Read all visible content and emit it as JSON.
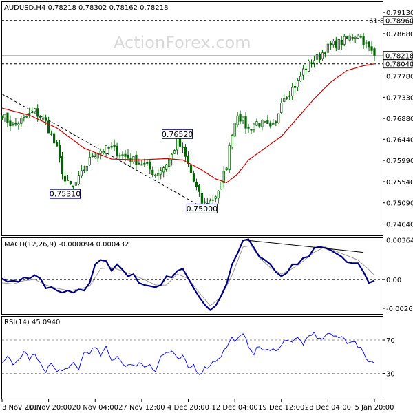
{
  "chart_data": [
    {
      "type": "candlestick",
      "symbol": "AUDUSD",
      "timeframe": "H4",
      "ohlc": [
        "0.78218",
        "0.78302",
        "0.78162",
        "0.78218"
      ],
      "watermark": "ActionForex.com",
      "ylim": [
        0.744,
        0.7935
      ],
      "yticks": [
        "0.79130",
        "0.78680",
        "0.77780",
        "0.77330",
        "0.76880",
        "0.76440",
        "0.75990",
        "0.75540",
        "0.75090",
        "0.74640"
      ],
      "ytick_values": [
        0.7913,
        0.7868,
        0.7778,
        0.7733,
        0.7688,
        0.7644,
        0.7599,
        0.7554,
        0.7509,
        0.7464
      ],
      "price_tags": [
        {
          "label": "0.78960",
          "value": 0.7896,
          "style": "white"
        },
        {
          "label": "0.78218",
          "value": 0.78218,
          "style": "white"
        },
        {
          "label": "0.78040",
          "value": 0.7804,
          "style": "white"
        }
      ],
      "horizontal_levels": [
        {
          "value": 0.7896,
          "label": "61.8"
        },
        {
          "value": 0.7804,
          "label": ""
        }
      ],
      "swing_labels": [
        {
          "label": "0.75310",
          "x": 23,
          "value": 0.7531
        },
        {
          "label": "0.76520",
          "x": 64,
          "value": 0.7652
        },
        {
          "label": "0.75000",
          "x": 73,
          "value": 0.75
        }
      ],
      "trendline": [
        {
          "x": 0,
          "value": 0.774
        },
        {
          "x": 73,
          "value": 0.75
        }
      ],
      "close_anchors": [
        [
          0,
          0.7695
        ],
        [
          4,
          0.7672
        ],
        [
          8,
          0.7688
        ],
        [
          12,
          0.7703
        ],
        [
          16,
          0.768
        ],
        [
          20,
          0.7622
        ],
        [
          23,
          0.7555
        ],
        [
          26,
          0.754
        ],
        [
          30,
          0.758
        ],
        [
          33,
          0.761
        ],
        [
          36,
          0.762
        ],
        [
          40,
          0.7625
        ],
        [
          44,
          0.761
        ],
        [
          48,
          0.76
        ],
        [
          52,
          0.759
        ],
        [
          56,
          0.757
        ],
        [
          59,
          0.7585
        ],
        [
          62,
          0.761
        ],
        [
          64,
          0.764
        ],
        [
          66,
          0.762
        ],
        [
          68,
          0.759
        ],
        [
          70,
          0.7555
        ],
        [
          73,
          0.751
        ],
        [
          75,
          0.7505
        ],
        [
          78,
          0.7525
        ],
        [
          80,
          0.7548
        ],
        [
          82,
          0.759
        ],
        [
          84,
          0.766
        ],
        [
          86,
          0.77
        ],
        [
          88,
          0.768
        ],
        [
          90,
          0.7665
        ],
        [
          93,
          0.768
        ],
        [
          96,
          0.7675
        ],
        [
          98,
          0.7665
        ],
        [
          100,
          0.7675
        ],
        [
          102,
          0.773
        ],
        [
          105,
          0.7745
        ],
        [
          108,
          0.7765
        ],
        [
          110,
          0.779
        ],
        [
          113,
          0.781
        ],
        [
          116,
          0.782
        ],
        [
          118,
          0.7835
        ],
        [
          121,
          0.7845
        ],
        [
          124,
          0.785
        ],
        [
          127,
          0.786
        ],
        [
          130,
          0.7868
        ],
        [
          132,
          0.7853
        ],
        [
          134,
          0.7835
        ],
        [
          136,
          0.7822
        ]
      ],
      "ma_anchors": [
        [
          0,
          0.771
        ],
        [
          10,
          0.7695
        ],
        [
          20,
          0.7668
        ],
        [
          30,
          0.7625
        ],
        [
          40,
          0.7602
        ],
        [
          50,
          0.76
        ],
        [
          60,
          0.7603
        ],
        [
          66,
          0.76
        ],
        [
          72,
          0.7582
        ],
        [
          78,
          0.756
        ],
        [
          82,
          0.7552
        ],
        [
          86,
          0.757
        ],
        [
          90,
          0.76
        ],
        [
          96,
          0.7625
        ],
        [
          102,
          0.765
        ],
        [
          108,
          0.769
        ],
        [
          114,
          0.773
        ],
        [
          120,
          0.7765
        ],
        [
          126,
          0.779
        ],
        [
          132,
          0.78
        ],
        [
          136,
          0.7804
        ]
      ]
    },
    {
      "type": "line",
      "title": "MACD(12,26,9) -0.000094 0.000432",
      "yticks": [
        "0.00364",
        "0.00",
        "-0.002644"
      ],
      "ytick_values": [
        0.00364,
        0.0,
        -0.002644
      ],
      "ylim": [
        -0.00315,
        0.0038
      ],
      "zero_line": 0.0,
      "series": [
        {
          "role": "signal",
          "color": "#999999",
          "anchors": [
            [
              0,
              -0.0003
            ],
            [
              4,
              -0.0004
            ],
            [
              8,
              -0.0001
            ],
            [
              12,
              0.0
            ],
            [
              16,
              -0.0005
            ],
            [
              20,
              -0.0008
            ],
            [
              24,
              -0.001
            ],
            [
              28,
              -0.0009
            ],
            [
              32,
              -0.0006
            ],
            [
              36,
              0.001
            ],
            [
              40,
              0.0011
            ],
            [
              44,
              0.0008
            ],
            [
              48,
              0.0004
            ],
            [
              52,
              0.0
            ],
            [
              56,
              -0.0005
            ],
            [
              60,
              -0.0005
            ],
            [
              64,
              0.0005
            ],
            [
              68,
              0.0001
            ],
            [
              72,
              -0.0012
            ],
            [
              76,
              -0.0024
            ],
            [
              80,
              -0.0016
            ],
            [
              84,
              0.0004
            ],
            [
              88,
              0.003
            ],
            [
              91,
              0.0031
            ],
            [
              94,
              0.002
            ],
            [
              98,
              0.0011
            ],
            [
              102,
              0.0005
            ],
            [
              106,
              0.001
            ],
            [
              110,
              0.0017
            ],
            [
              114,
              0.0025
            ],
            [
              118,
              0.003
            ],
            [
              122,
              0.0026
            ],
            [
              126,
              0.0022
            ],
            [
              130,
              0.0018
            ],
            [
              134,
              0.0009
            ],
            [
              136,
              0.0004
            ]
          ]
        },
        {
          "role": "macd",
          "color": "#00007f",
          "anchors": [
            [
              0,
              0.0001
            ],
            [
              2,
              -0.0002
            ],
            [
              4,
              -0.0001
            ],
            [
              6,
              -0.0002
            ],
            [
              8,
              0.0002
            ],
            [
              10,
              0.0001
            ],
            [
              12,
              0.0004
            ],
            [
              14,
              0.0001
            ],
            [
              16,
              -0.0008
            ],
            [
              18,
              -0.0007
            ],
            [
              20,
              -0.001
            ],
            [
              22,
              -0.0012
            ],
            [
              24,
              -0.001
            ],
            [
              26,
              -0.0012
            ],
            [
              28,
              -0.0009
            ],
            [
              30,
              -0.001
            ],
            [
              32,
              -0.0003
            ],
            [
              34,
              0.0014
            ],
            [
              36,
              0.0018
            ],
            [
              38,
              0.0017
            ],
            [
              40,
              0.0008
            ],
            [
              42,
              0.0014
            ],
            [
              44,
              0.0009
            ],
            [
              46,
              0.0003
            ],
            [
              48,
              0.0005
            ],
            [
              50,
              -0.0003
            ],
            [
              52,
              -0.0005
            ],
            [
              54,
              -0.0006
            ],
            [
              56,
              -0.0007
            ],
            [
              58,
              -0.0005
            ],
            [
              60,
              0.0003
            ],
            [
              62,
              0.0002
            ],
            [
              64,
              0.0008
            ],
            [
              66,
              0.001
            ],
            [
              68,
              0.0001
            ],
            [
              70,
              -0.0008
            ],
            [
              72,
              -0.0016
            ],
            [
              74,
              -0.0023
            ],
            [
              76,
              -0.0028
            ],
            [
              78,
              -0.0024
            ],
            [
              80,
              -0.0015
            ],
            [
              82,
              -0.0004
            ],
            [
              84,
              0.0014
            ],
            [
              86,
              0.0024
            ],
            [
              88,
              0.0036
            ],
            [
              90,
              0.0037
            ],
            [
              92,
              0.0029
            ],
            [
              94,
              0.0021
            ],
            [
              96,
              0.0018
            ],
            [
              98,
              0.0014
            ],
            [
              100,
              0.0007
            ],
            [
              102,
              0.0003
            ],
            [
              104,
              0.0006
            ],
            [
              106,
              0.0014
            ],
            [
              108,
              0.0014
            ],
            [
              110,
              0.002
            ],
            [
              112,
              0.0021
            ],
            [
              114,
              0.0029
            ],
            [
              116,
              0.003
            ],
            [
              118,
              0.0029
            ],
            [
              120,
              0.0027
            ],
            [
              122,
              0.0024
            ],
            [
              124,
              0.0021
            ],
            [
              126,
              0.0016
            ],
            [
              128,
              0.0015
            ],
            [
              130,
              0.0015
            ],
            [
              132,
              0.0007
            ],
            [
              134,
              -0.0003
            ],
            [
              136,
              -0.0001
            ]
          ]
        }
      ],
      "divergence_line": [
        {
          "x": 88,
          "value": 0.00364
        },
        {
          "x": 132,
          "value": 0.0025
        }
      ]
    },
    {
      "type": "line",
      "title": "RSI(14) 45.0940",
      "yticks": [
        "70",
        "30"
      ],
      "ytick_values": [
        70,
        30
      ],
      "ylim": [
        0,
        98
      ],
      "levels": [
        70,
        30
      ],
      "series": [
        {
          "role": "rsi",
          "color": "#0000ff",
          "anchors": [
            [
              0,
              45
            ],
            [
              2,
              52
            ],
            [
              4,
              38
            ],
            [
              6,
              46
            ],
            [
              8,
              56
            ],
            [
              10,
              48
            ],
            [
              12,
              52
            ],
            [
              14,
              40
            ],
            [
              16,
              34
            ],
            [
              18,
              42
            ],
            [
              20,
              31
            ],
            [
              22,
              36
            ],
            [
              24,
              33
            ],
            [
              26,
              42
            ],
            [
              28,
              36
            ],
            [
              30,
              55
            ],
            [
              32,
              56
            ],
            [
              34,
              60
            ],
            [
              36,
              52
            ],
            [
              38,
              60
            ],
            [
              40,
              45
            ],
            [
              42,
              52
            ],
            [
              44,
              42
            ],
            [
              46,
              40
            ],
            [
              48,
              38
            ],
            [
              50,
              44
            ],
            [
              52,
              38
            ],
            [
              54,
              42
            ],
            [
              56,
              33
            ],
            [
              58,
              50
            ],
            [
              60,
              55
            ],
            [
              62,
              56
            ],
            [
              64,
              46
            ],
            [
              66,
              50
            ],
            [
              68,
              36
            ],
            [
              70,
              40
            ],
            [
              72,
              30
            ],
            [
              74,
              36
            ],
            [
              76,
              41
            ],
            [
              78,
              46
            ],
            [
              80,
              52
            ],
            [
              82,
              62
            ],
            [
              84,
              72
            ],
            [
              86,
              70
            ],
            [
              88,
              76
            ],
            [
              90,
              64
            ],
            [
              92,
              55
            ],
            [
              94,
              62
            ],
            [
              96,
              58
            ],
            [
              98,
              56
            ],
            [
              100,
              60
            ],
            [
              102,
              63
            ],
            [
              104,
              72
            ],
            [
              106,
              68
            ],
            [
              108,
              72
            ],
            [
              110,
              66
            ],
            [
              112,
              72
            ],
            [
              114,
              78
            ],
            [
              116,
              70
            ],
            [
              118,
              76
            ],
            [
              120,
              78
            ],
            [
              122,
              72
            ],
            [
              124,
              74
            ],
            [
              126,
              68
            ],
            [
              128,
              70
            ],
            [
              130,
              62
            ],
            [
              132,
              55
            ],
            [
              134,
              44
            ],
            [
              136,
              45
            ]
          ]
        }
      ],
      "xticks": [
        "3 Nov 2017",
        "10 Nov 20:00",
        "20 Nov 04:00",
        "27 Nov 12:00",
        "4 Dec 20:00",
        "12 Dec 04:00",
        "19 Dec 12:00",
        "28 Dec 04:00",
        "5 Jan 20:00"
      ],
      "xtick_positions": [
        0,
        17,
        34,
        51,
        68,
        85,
        102,
        119,
        136
      ]
    }
  ]
}
